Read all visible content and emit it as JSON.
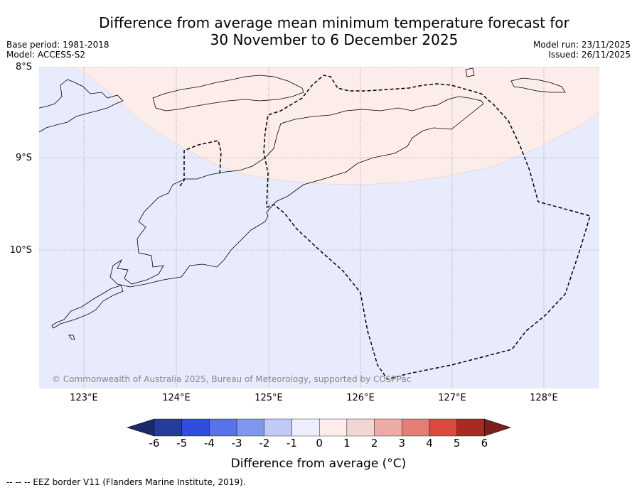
{
  "title_line1": "Difference from average mean minimum temperature forecast for",
  "title_line2": "30 November to 6 December 2025",
  "meta": {
    "base_period": "Base period: 1981-2018",
    "model": "Model: ACCESS-S2",
    "model_run": "Model run: 23/11/2025",
    "issued": "Issued: 26/11/2025"
  },
  "latitude_labels": [
    "8°S",
    "9°S",
    "10°S"
  ],
  "longitude_labels": [
    "123°E",
    "124°E",
    "125°E",
    "126°E",
    "127°E",
    "128°E"
  ],
  "copyright": "© Commonwealth of Australia 2025, Bureau of Meteorology, supported by COSPPac",
  "colorbar": {
    "ticks": [
      "-6",
      "-5",
      "-4",
      "-3",
      "-2",
      "-1",
      "0",
      "1",
      "2",
      "3",
      "4",
      "5",
      "6"
    ],
    "colors": [
      "#263b9e",
      "#2f4ee0",
      "#5a72e8",
      "#8196ee",
      "#c1c9f6",
      "#ecedfd",
      "#fdeceb",
      "#f0d7d5",
      "#eeaaa5",
      "#e57e76",
      "#db4a3f",
      "#a82a22"
    ],
    "under_color": "#1c2a6b",
    "over_color": "#7a1f1b",
    "label": "Difference from average (°C)"
  },
  "map_colors": {
    "cool_band": "#e8ebfb",
    "warm_band": "#fcecea"
  },
  "footer": "--  --  -- EEZ border V11 (Flanders Marine Institute, 2019)."
}
